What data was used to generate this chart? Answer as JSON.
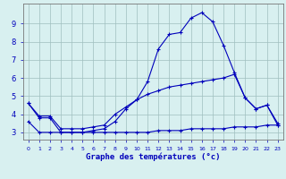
{
  "xlabel": "Graphe des températures (°c)",
  "hours": [
    0,
    1,
    2,
    3,
    4,
    5,
    6,
    7,
    8,
    9,
    10,
    11,
    12,
    13,
    14,
    15,
    16,
    17,
    18,
    19,
    20,
    21,
    22,
    23
  ],
  "line_upper": [
    4.6,
    3.8,
    3.8,
    3.0,
    3.0,
    3.0,
    3.1,
    3.2,
    3.6,
    4.3,
    4.8,
    5.8,
    7.6,
    8.4,
    8.5,
    9.3,
    9.6,
    9.1,
    7.8,
    6.3,
    4.9,
    4.3,
    4.5,
    3.4
  ],
  "line_mid": [
    4.6,
    3.9,
    3.9,
    3.2,
    3.2,
    3.2,
    3.3,
    3.4,
    4.0,
    4.4,
    4.8,
    5.1,
    5.3,
    5.5,
    5.6,
    5.7,
    5.8,
    5.9,
    6.0,
    6.2,
    4.9,
    4.3,
    4.5,
    3.5
  ],
  "line_low": [
    3.6,
    3.0,
    3.0,
    3.0,
    3.0,
    3.0,
    3.0,
    3.0,
    3.0,
    3.0,
    3.0,
    3.0,
    3.1,
    3.1,
    3.1,
    3.2,
    3.2,
    3.2,
    3.2,
    3.3,
    3.3,
    3.3,
    3.4,
    3.4
  ],
  "line_color": "#0000bb",
  "bg_color": "#d8f0f0",
  "grid_color": "#9fbfbf",
  "ylim": [
    2.6,
    10.1
  ],
  "yticks": [
    3,
    4,
    5,
    6,
    7,
    8,
    9
  ],
  "xlim": [
    -0.5,
    23.5
  ]
}
